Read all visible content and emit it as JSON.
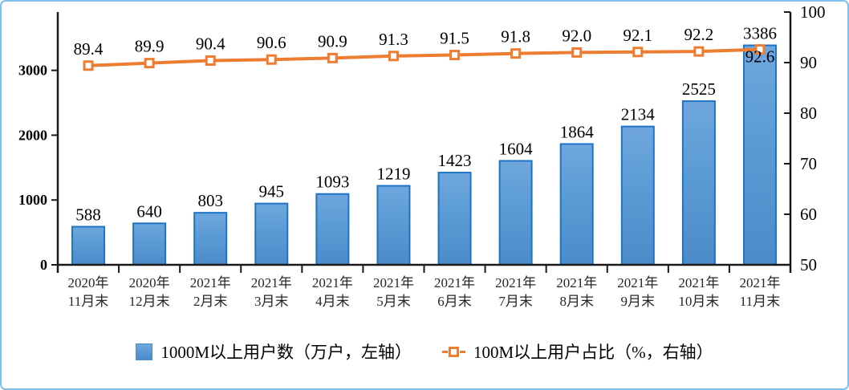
{
  "chart_data": {
    "type": "bar+line",
    "categories": [
      [
        "2020年",
        "11月末"
      ],
      [
        "2020年",
        "12月末"
      ],
      [
        "2021年",
        "2月末"
      ],
      [
        "2021年",
        "3月末"
      ],
      [
        "2021年",
        "4月末"
      ],
      [
        "2021年",
        "5月末"
      ],
      [
        "2021年",
        "6月末"
      ],
      [
        "2021年",
        "7月末"
      ],
      [
        "2021年",
        "8月末"
      ],
      [
        "2021年",
        "9月末"
      ],
      [
        "2021年",
        "10月末"
      ],
      [
        "2021年",
        "11月末"
      ]
    ],
    "series": [
      {
        "name": "1000M以上用户数（万户，左轴）",
        "type": "bar",
        "axis": "left",
        "decimals": 0,
        "values": [
          588,
          640,
          803,
          945,
          1093,
          1219,
          1423,
          1604,
          1864,
          2134,
          2525,
          3386
        ]
      },
      {
        "name": "100M以上用户占比（%，右轴）",
        "type": "line",
        "axis": "right",
        "decimals": 1,
        "values": [
          89.4,
          89.9,
          90.4,
          90.6,
          90.9,
          91.3,
          91.5,
          91.8,
          92.0,
          92.1,
          92.2,
          92.6
        ]
      }
    ],
    "left_axis": {
      "min": 0,
      "max": 3900,
      "ticks": [
        0,
        1000,
        2000,
        3000
      ]
    },
    "right_axis": {
      "min": 50,
      "max": 100,
      "ticks": [
        50,
        60,
        70,
        80,
        90,
        100
      ]
    },
    "grid": false,
    "legend_position": "bottom"
  },
  "colors": {
    "bar_fill_top": "#6fa7dd",
    "bar_fill_mid": "#5b9bd5",
    "bar_fill_bottom": "#4c8bc9",
    "bar_border": "#1e73c6",
    "line": "#ed7d31",
    "marker_fill": "#ffffff",
    "axis": "#1a1a1a",
    "label_text": "#000000",
    "category_text": "#262626",
    "frame_border": "#7ec0ea"
  }
}
